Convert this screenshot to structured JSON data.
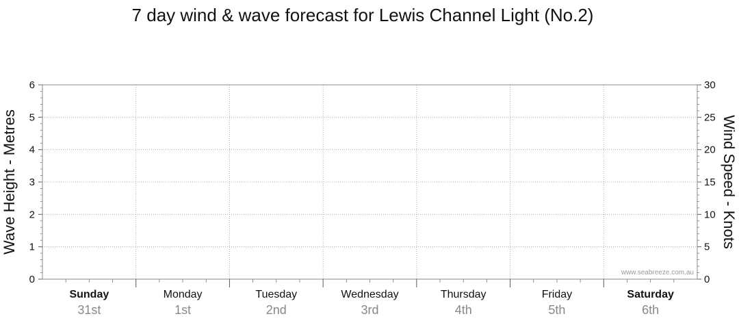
{
  "chart_data": {
    "type": "line",
    "title": "7 day wind & wave forecast for Lewis Channel Light (No.2)",
    "ylabel_left": "Wave Height - Metres",
    "ylabel_right": "Wind Speed - Knots",
    "ylim_left": [
      0,
      6
    ],
    "ylim_right": [
      0,
      30
    ],
    "yticks_left": [
      "0",
      "1",
      "2",
      "3",
      "4",
      "5",
      "6"
    ],
    "yticks_right": [
      "0",
      "5",
      "10",
      "15",
      "20",
      "25",
      "30"
    ],
    "days": [
      {
        "name": "Sunday",
        "date": "31st",
        "bold": true
      },
      {
        "name": "Monday",
        "date": "1st",
        "bold": false
      },
      {
        "name": "Tuesday",
        "date": "2nd",
        "bold": false
      },
      {
        "name": "Wednesday",
        "date": "3rd",
        "bold": false
      },
      {
        "name": "Thursday",
        "date": "4th",
        "bold": false
      },
      {
        "name": "Friday",
        "date": "5th",
        "bold": false
      },
      {
        "name": "Saturday",
        "date": "6th",
        "bold": true
      }
    ],
    "series": [],
    "grid": true,
    "watermark": "www.seabreeze.com.au"
  }
}
